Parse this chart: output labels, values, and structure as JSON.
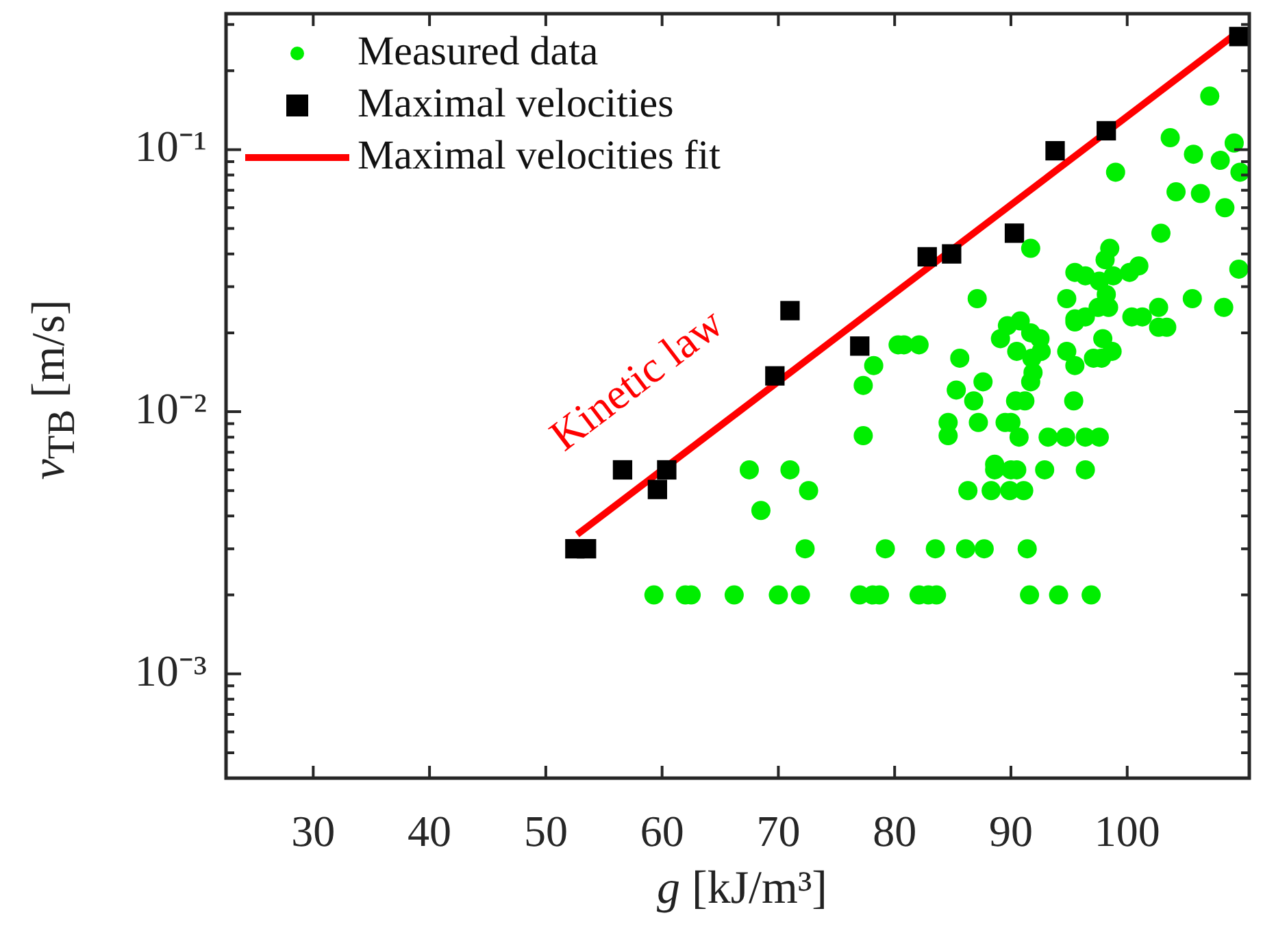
{
  "chart_data": {
    "type": "scatter",
    "xlabel": "g [kJ/m³]",
    "ylabel": "v$_{TB}$ [m/s]",
    "log": "y",
    "grid": false,
    "legend": "top left",
    "xlim": [
      22.5,
      110.5
    ],
    "xticks": [
      30,
      40,
      50,
      60,
      70,
      80,
      90,
      100
    ],
    "ylim": [
      0.0004,
      0.33
    ],
    "yticks": [
      {
        "value": 0.001,
        "label": "10⁻³"
      },
      {
        "value": 0.01,
        "label": "10⁻²"
      },
      {
        "value": 0.1,
        "label": "10⁻¹"
      }
    ],
    "annotations": [
      "Kinetic law"
    ],
    "series": [
      {
        "name": "Measured data",
        "type": "scatter",
        "marker": "circle",
        "color": "#00ee00",
        "x": [
          67.5,
          71.0,
          72.6,
          68.5,
          72.3,
          79.2,
          77.3,
          78.2,
          77.3,
          80.3,
          59.3,
          62.0,
          62.5,
          66.2,
          70.0,
          71.9,
          77.0,
          78.1,
          78.7,
          108.4,
          91.7,
          102.9,
          98.5,
          98.1,
          95.5,
          96.4,
          97.6,
          98.8,
          100.2,
          101.0,
          109.6,
          87.1,
          94.8,
          98.2,
          97.5,
          98.4,
          105.6,
          108.3,
          102.7,
          100.4,
          101.3,
          95.5,
          96.4,
          95.5,
          102.7,
          103.4,
          80.8,
          82.1,
          89.7,
          90.8,
          91.7,
          92.5,
          89.1,
          90.5,
          92.6,
          91.8,
          85.6,
          94.8,
          95.5,
          97.9,
          98.7,
          97.1,
          97.8,
          91.9,
          91.7,
          87.6,
          85.3,
          86.8,
          90.4,
          91.2,
          95.4,
          84.6,
          84.6,
          87.2,
          89.5,
          90.0,
          90.7,
          93.2,
          94.7,
          96.4,
          97.6,
          88.6,
          88.6,
          90.0,
          90.5,
          92.9,
          96.4,
          86.3,
          88.3,
          89.9,
          91.1,
          83.5,
          86.1,
          87.7,
          91.4,
          82.1,
          82.9,
          83.6,
          91.6,
          94.1,
          96.9,
          107.1,
          103.7,
          109.2,
          105.7,
          108.0,
          109.7,
          99.0,
          104.2,
          106.3
        ],
        "values": [
          0.006,
          0.006,
          0.005,
          0.0042,
          0.003,
          0.003,
          0.0126,
          0.015,
          0.0081,
          0.018,
          0.002,
          0.002,
          0.002,
          0.002,
          0.002,
          0.002,
          0.002,
          0.002,
          0.002,
          0.06,
          0.042,
          0.048,
          0.042,
          0.038,
          0.034,
          0.033,
          0.0315,
          0.033,
          0.034,
          0.036,
          0.035,
          0.027,
          0.027,
          0.028,
          0.025,
          0.025,
          0.027,
          0.025,
          0.025,
          0.023,
          0.023,
          0.0226,
          0.023,
          0.022,
          0.021,
          0.021,
          0.018,
          0.018,
          0.0213,
          0.0222,
          0.02,
          0.019,
          0.019,
          0.017,
          0.017,
          0.016,
          0.016,
          0.017,
          0.015,
          0.019,
          0.017,
          0.016,
          0.016,
          0.0141,
          0.013,
          0.013,
          0.0121,
          0.011,
          0.011,
          0.011,
          0.011,
          0.0091,
          0.0081,
          0.0091,
          0.0091,
          0.0091,
          0.008,
          0.008,
          0.008,
          0.008,
          0.008,
          0.0063,
          0.006,
          0.006,
          0.006,
          0.006,
          0.006,
          0.005,
          0.005,
          0.005,
          0.005,
          0.003,
          0.003,
          0.003,
          0.003,
          0.002,
          0.002,
          0.002,
          0.002,
          0.002,
          0.002,
          0.16,
          0.111,
          0.106,
          0.096,
          0.091,
          0.082,
          0.082,
          0.069,
          0.068
        ]
      },
      {
        "name": "Maximal velocities",
        "type": "scatter",
        "marker": "square",
        "color": "#000000",
        "x": [
          52.5,
          53.5,
          56.6,
          59.6,
          60.4,
          69.7,
          71.0,
          77.0,
          82.8,
          84.9,
          90.3,
          93.8,
          98.2,
          109.6
        ],
        "values": [
          0.003,
          0.003,
          0.006,
          0.00505,
          0.006,
          0.0137,
          0.0243,
          0.0178,
          0.039,
          0.04,
          0.048,
          0.099,
          0.118,
          0.27
        ]
      },
      {
        "name": "Maximal velocities fit",
        "type": "line",
        "marker": "none",
        "line_style": "solid",
        "color": "#ff0000",
        "x": [
          52.7,
          109.5
        ],
        "values": [
          0.0034,
          0.28
        ]
      }
    ]
  }
}
